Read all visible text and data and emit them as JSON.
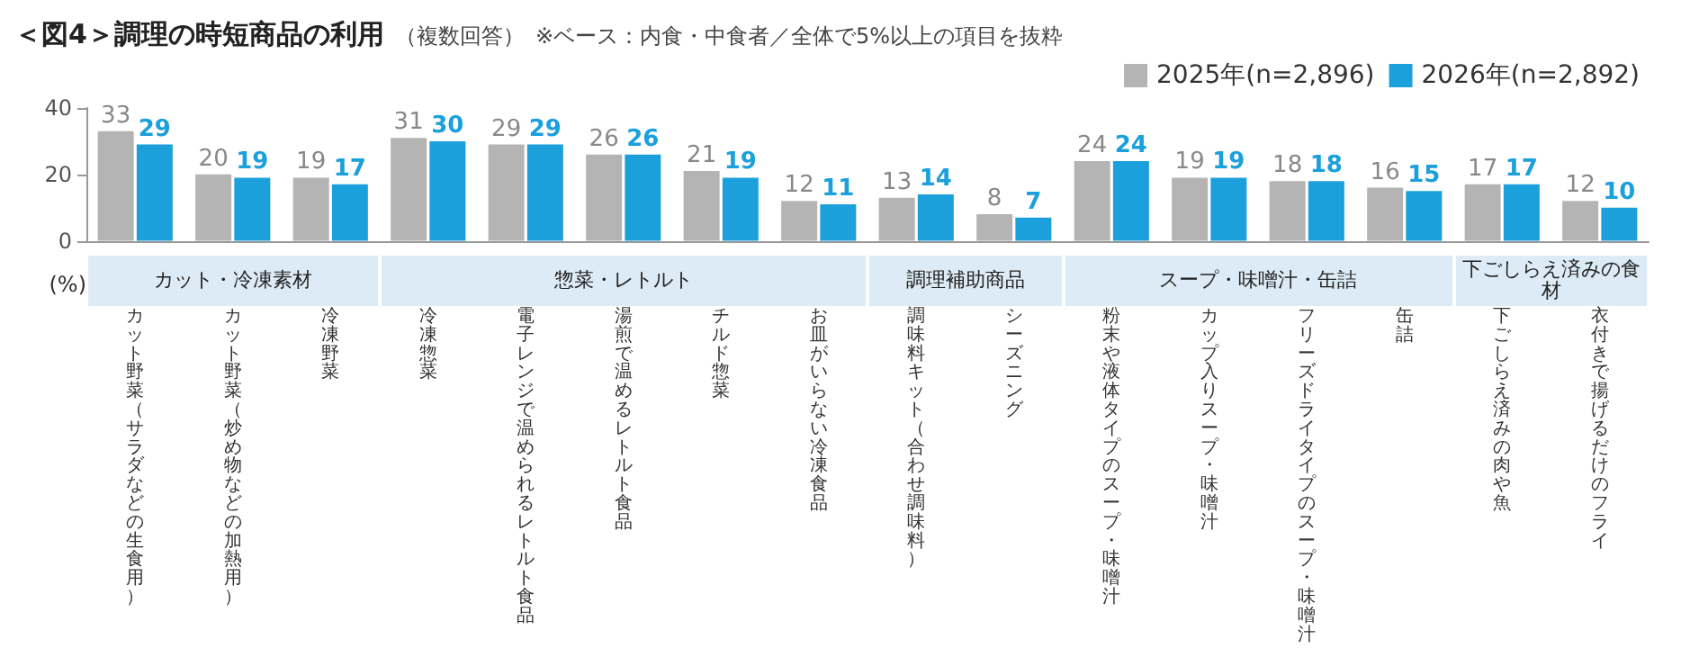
{
  "chart_data": {
    "type": "bar",
    "title": "＜図4＞調理の時短商品の利用",
    "subtitle": "（複数回答）",
    "ylabel": "(%)",
    "annotations": [
      "※ベース：内食・中食者／全体で5%以上の項目を抜粋",
      "カット・冷凍素材",
      "惣菜・レトルト",
      "調理補助商品",
      "スープ・味噌汁・缶詰",
      "下ごしらえ済みの食材"
    ],
    "categories": [
      "カット野菜（サラダなどの生食用）",
      "カット野菜（炒め物などの加熱用）",
      "冷凍野菜",
      "冷凍惣菜",
      "電子レンジで温められるレトルト食品",
      "湯煎で温めるレトルト食品",
      "チルド惣菜",
      "お皿がいらない冷凍食品",
      "調味料キット（合わせ調味料）",
      "シーズニング",
      "粉末や液体タイプのスープ・味噌汁",
      "カップ入りスープ・味噌汁",
      "フリーズドライタイプのスープ・味噌汁",
      "缶詰",
      "下ごしらえ済みの肉や魚",
      "衣付きで揚げるだけのフライ"
    ],
    "series": [
      {
        "name": "2025年(n=2,896)",
        "color": "#b4b4b4",
        "values": [
          33,
          20,
          19,
          31,
          29,
          26,
          21,
          12,
          13,
          8,
          24,
          19,
          18,
          16,
          17,
          12
        ]
      },
      {
        "name": "2026年(n=2,892)",
        "color": "#1ca0dc",
        "values": [
          29,
          19,
          17,
          30,
          29,
          26,
          19,
          11,
          14,
          7,
          24,
          19,
          18,
          15,
          17,
          10
        ]
      }
    ],
    "ylim": [
      0,
      40
    ],
    "yticks": [
      0,
      20,
      40
    ],
    "grid": false,
    "legend": "top right",
    "data_labels": true
  }
}
